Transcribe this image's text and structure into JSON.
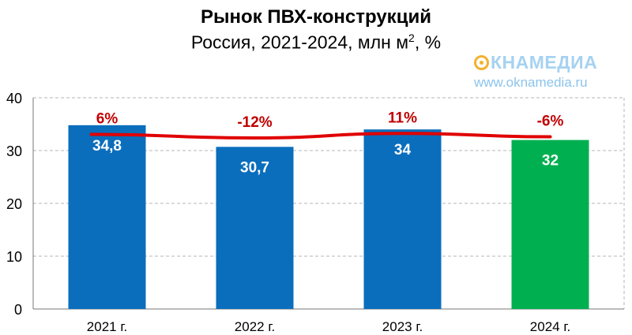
{
  "chart_title": "Рынок ПВХ-конструкций",
  "chart_subtitle_before": "Россия, 2021-2024, млн м",
  "chart_subtitle_sup": "2",
  "chart_subtitle_after": ", %",
  "logo": {
    "name": "КНАМЕДИА",
    "url": "www.oknamedia.ru"
  },
  "colors": {
    "bar_blue": "#0a6ebd",
    "bar_green": "#00b050",
    "line_red": "#e00000",
    "growth_text": "#c00000",
    "grid": "#b4b4b4"
  },
  "chart_data": {
    "type": "bar",
    "title": "Рынок ПВХ-конструкций",
    "subtitle": "Россия, 2021-2024, млн м², %",
    "categories": [
      "2021 г.",
      "2022 г.",
      "2023 г.",
      "2024 г."
    ],
    "values": [
      34.8,
      30.7,
      34,
      32
    ],
    "value_labels": [
      "34,8",
      "30,7",
      "34",
      "32"
    ],
    "bar_colors": [
      "#0a6ebd",
      "#0a6ebd",
      "#0a6ebd",
      "#00b050"
    ],
    "ylim": [
      0,
      40
    ],
    "yticks": [
      "0",
      "10",
      "20",
      "30",
      "40"
    ],
    "grid": true,
    "growth": {
      "type": "line",
      "labels": [
        "6%",
        "-12%",
        "11%",
        "-6%"
      ],
      "values": [
        6,
        -12,
        11,
        -6
      ]
    }
  }
}
